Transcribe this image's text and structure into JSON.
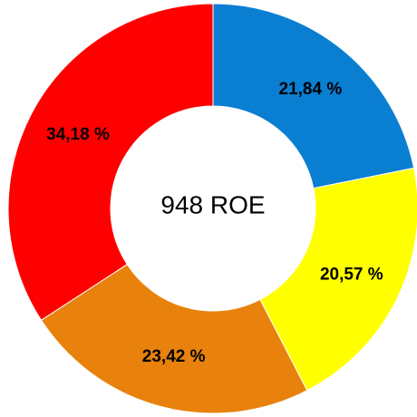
{
  "chart_data": {
    "type": "donut",
    "center_text": "948 ROE",
    "categories": [
      null,
      null,
      null,
      null
    ],
    "values": [
      21.84,
      20.57,
      23.42,
      34.18
    ],
    "value_labels": [
      "21,84 %",
      "20,57 %",
      "23,42 %",
      "34,18 %"
    ],
    "colors": [
      "#0a7fd2",
      "#ffff00",
      "#e8820c",
      "#ff0000"
    ]
  }
}
